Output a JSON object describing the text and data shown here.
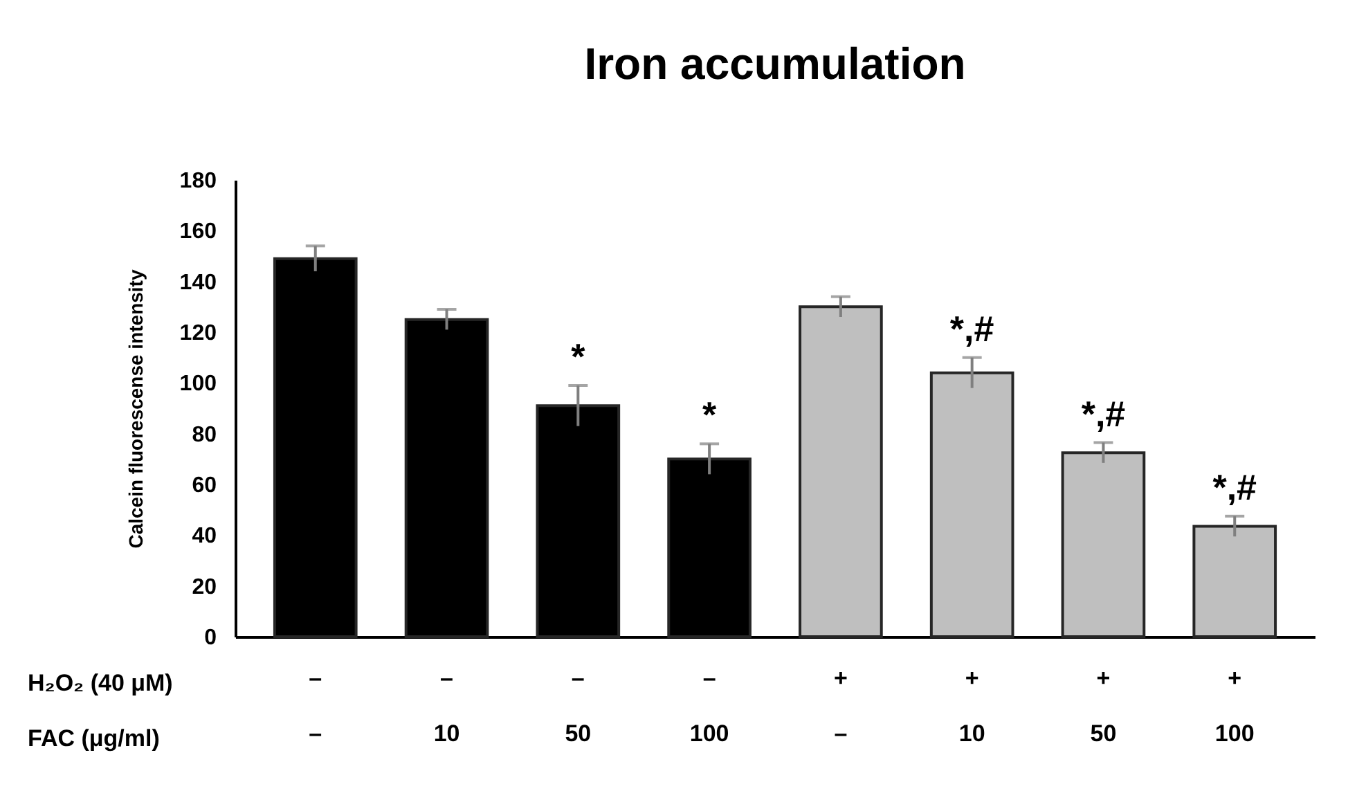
{
  "chart_data": {
    "type": "bar",
    "title": "Iron accumulation",
    "ylabel": "Calcein fluorescense intensity",
    "categories": [
      "–\n–",
      "–\n10",
      "–\n50",
      "–\n100",
      "+\n–",
      "+\n10",
      "+\n50",
      "+\n100"
    ],
    "values": [
      149,
      125,
      91,
      70,
      130,
      104,
      72.5,
      43.5
    ],
    "errors": [
      5,
      4,
      8,
      6,
      4,
      6,
      4,
      4
    ],
    "colors": [
      "#000000",
      "#000000",
      "#000000",
      "#000000",
      "#bfbfbf",
      "#bfbfbf",
      "#bfbfbf",
      "#bfbfbf"
    ],
    "ylim": [
      0,
      180
    ],
    "yticks": [
      0,
      20,
      40,
      60,
      80,
      100,
      120,
      140,
      160,
      180
    ],
    "grid": false,
    "annotations": [
      {
        "text": "*",
        "x": "–\n50",
        "y": 91
      },
      {
        "text": "*",
        "x": "–\n100",
        "y": 70
      },
      {
        "text": "*,#",
        "x": "+\n10",
        "y": 104
      },
      {
        "text": "*,#",
        "x": "+\n50",
        "y": 72.5
      },
      {
        "text": "*,#",
        "x": "+\n100",
        "y": 43.5
      },
      "H₂O₂ (40 μM)",
      "FAC (μg/ml)"
    ]
  }
}
